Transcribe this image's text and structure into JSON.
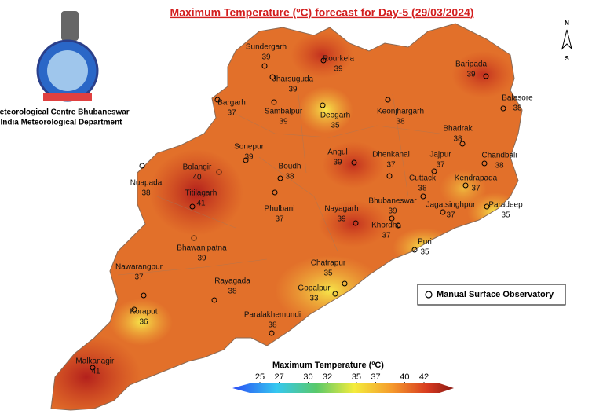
{
  "header": {
    "title": "Maximum Temperature (ºC) forecast for Day-5 (29/03/2024)",
    "org_line1": "Meteorological Centre Bhubaneswar",
    "org_line2": "India Meteorological Department"
  },
  "north_arrow": {
    "north": "N",
    "south": "S"
  },
  "stations": [
    {
      "name": "Sundergarh",
      "value": 39
    },
    {
      "name": "Rourkela",
      "value": 39
    },
    {
      "name": "Jharsuguda",
      "value": 39
    },
    {
      "name": "Bargarh",
      "value": 37
    },
    {
      "name": "Sambalpur",
      "value": 39
    },
    {
      "name": "Deogarh",
      "value": 35
    },
    {
      "name": "Keonjhargarh",
      "value": 38
    },
    {
      "name": "Baripada",
      "value": 39
    },
    {
      "name": "Balasore",
      "value": 38
    },
    {
      "name": "Bhadrak",
      "value": 38
    },
    {
      "name": "Chandbali",
      "value": 38
    },
    {
      "name": "Jajpur",
      "value": 37
    },
    {
      "name": "Sonepur",
      "value": 39
    },
    {
      "name": "Angul",
      "value": 39
    },
    {
      "name": "Dhenkanal",
      "value": 37
    },
    {
      "name": "Boudh",
      "value": 38
    },
    {
      "name": "Bolangir",
      "value": 40
    },
    {
      "name": "Nuapada",
      "value": 38
    },
    {
      "name": "Titilagarh",
      "value": 41
    },
    {
      "name": "Cuttack",
      "value": 38
    },
    {
      "name": "Kendrapada",
      "value": 37
    },
    {
      "name": "Phulbani",
      "value": 37
    },
    {
      "name": "Nayagarh",
      "value": 39
    },
    {
      "name": "Bhubaneswar",
      "value": 39
    },
    {
      "name": "Jagatsinghpur",
      "value": 37
    },
    {
      "name": "Paradeep",
      "value": 35
    },
    {
      "name": "Khordha",
      "value": 37
    },
    {
      "name": "Bhawanipatna",
      "value": 39
    },
    {
      "name": "Puri",
      "value": 35
    },
    {
      "name": "Nawarangpur",
      "value": 37
    },
    {
      "name": "Chatrapur",
      "value": 35
    },
    {
      "name": "Rayagada",
      "value": 38
    },
    {
      "name": "Gopalpur",
      "value": 33
    },
    {
      "name": "Koraput",
      "value": 36
    },
    {
      "name": "Paralakhemundi",
      "value": 38
    },
    {
      "name": "Malkanagiri",
      "value": 41
    }
  ],
  "legend": {
    "label": "Manual Surface Observatory"
  },
  "colorbar": {
    "title": "Maximum Temperature (ºC)",
    "ticks": [
      25,
      27,
      30,
      32,
      35,
      37,
      40,
      42
    ]
  }
}
